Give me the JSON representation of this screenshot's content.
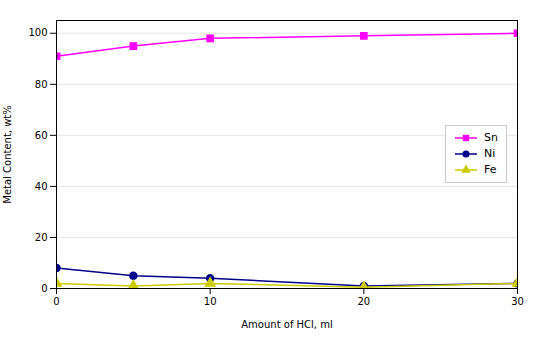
{
  "chart_data": {
    "type": "line",
    "x": [
      0,
      5,
      10,
      20,
      30
    ],
    "series": [
      {
        "name": "Sn",
        "color": "#FF00FF",
        "marker": "square",
        "values": [
          91,
          95,
          98,
          99,
          100
        ]
      },
      {
        "name": "Ni",
        "color": "#00008B",
        "marker": "circle",
        "values": [
          8,
          5,
          4,
          1,
          2
        ]
      },
      {
        "name": "Fe",
        "color": "#CCCC00",
        "marker": "triangle",
        "values": [
          2,
          1,
          2,
          0.5,
          2
        ]
      }
    ],
    "xlabel": "Amount of HCl, ml",
    "ylabel": "Metal Content, wt%",
    "xlim": [
      0,
      30
    ],
    "ylim": [
      0,
      105
    ],
    "xticks": [
      0,
      10,
      20,
      30
    ],
    "yticks": [
      0,
      20,
      40,
      60,
      80,
      100
    ],
    "grid": "y",
    "legend": "right"
  }
}
